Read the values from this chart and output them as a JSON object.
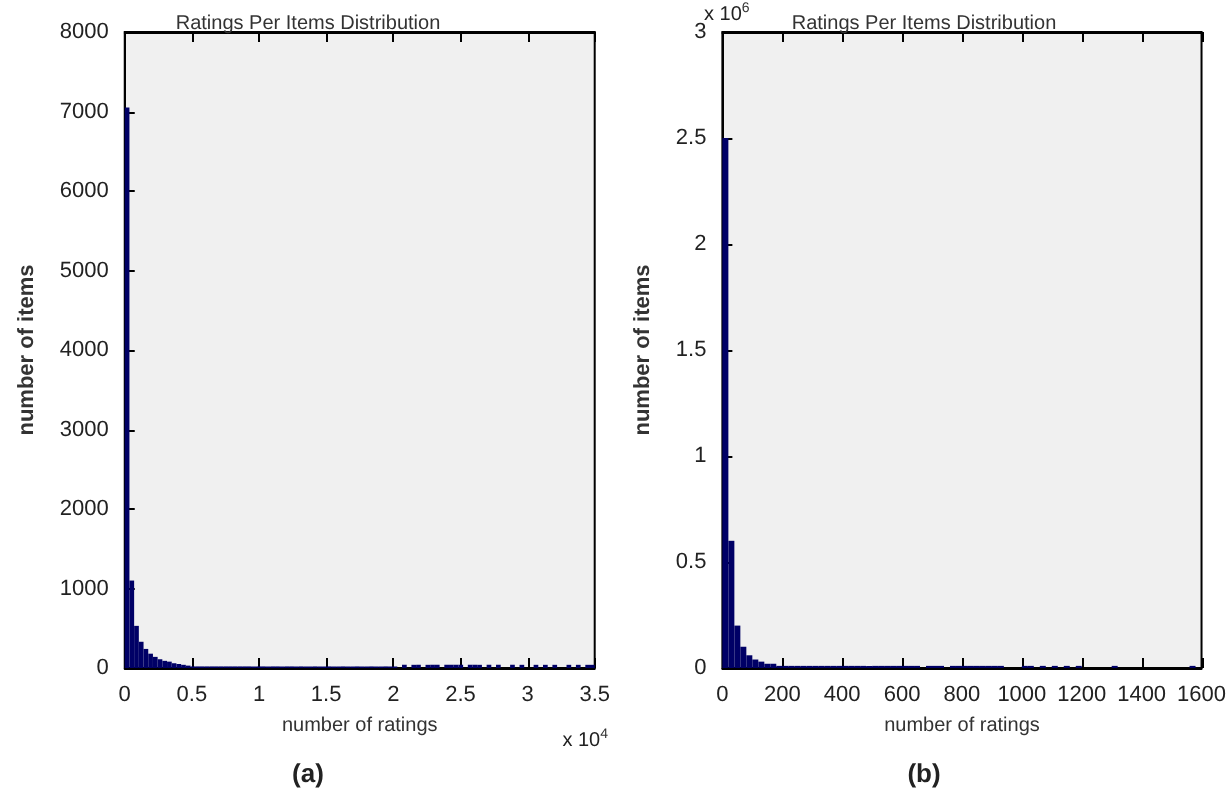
{
  "chart_data": [
    {
      "type": "histogram",
      "title": "Ratings Per Items Distribution",
      "xlabel": "number of ratings",
      "ylabel": "number of items",
      "color": "#000066",
      "grid": false,
      "bins": [
        0,
        0.035,
        0.07,
        0.105,
        0.14,
        0.175,
        0.21,
        0.245,
        0.28,
        0.315,
        0.35,
        0.385,
        0.42,
        0.455,
        0.49,
        0.525,
        0.56,
        0.595,
        0.63,
        0.665,
        0.7,
        0.735,
        0.77,
        0.805,
        0.84,
        0.875,
        0.91,
        0.945,
        0.98,
        1.015,
        1.05,
        1.085,
        1.12,
        1.155,
        1.19,
        1.225,
        1.26,
        1.295,
        1.33,
        1.365,
        1.4,
        1.435,
        1.47,
        1.505,
        1.54,
        1.575,
        1.61,
        1.645,
        1.68,
        1.715,
        1.75,
        1.785,
        1.82,
        1.855,
        1.89,
        1.925,
        1.96,
        1.995,
        2.03,
        2.065,
        2.1,
        2.135,
        2.17,
        2.205,
        2.24,
        2.275,
        2.31,
        2.345,
        2.38,
        2.415,
        2.45,
        2.485,
        2.52,
        2.555,
        2.59,
        2.625,
        2.66,
        2.695,
        2.73,
        2.765,
        2.8,
        2.835,
        2.87,
        2.905,
        2.94,
        2.975,
        3.01,
        3.045,
        3.08,
        3.115,
        3.15,
        3.185,
        3.22,
        3.255,
        3.29,
        3.325,
        3.36,
        3.395,
        3.43,
        3.465,
        3.5
      ],
      "values": [
        7050,
        1100,
        530,
        330,
        240,
        180,
        140,
        110,
        90,
        80,
        60,
        50,
        40,
        30,
        20,
        20,
        20,
        20,
        20,
        20,
        20,
        20,
        20,
        20,
        20,
        20,
        20,
        20,
        20,
        20,
        20,
        20,
        20,
        20,
        20,
        20,
        20,
        20,
        20,
        20,
        20,
        20,
        20,
        20,
        20,
        20,
        20,
        20,
        20,
        20,
        20,
        20,
        20,
        20,
        20,
        20,
        20,
        20,
        null,
        40,
        null,
        40,
        40,
        null,
        40,
        40,
        40,
        null,
        40,
        40,
        40,
        40,
        null,
        40,
        40,
        40,
        null,
        40,
        null,
        40,
        null,
        null,
        40,
        null,
        40,
        null,
        null,
        40,
        null,
        40,
        null,
        40,
        null,
        null,
        40,
        null,
        40,
        null,
        40,
        40
      ],
      "xlim": [
        0,
        3.5
      ],
      "xticks": [
        0,
        0.5,
        1,
        1.5,
        2,
        2.5,
        3,
        3.5
      ],
      "ylim": [
        0,
        8000
      ],
      "yticks": [
        0,
        1000,
        2000,
        3000,
        4000,
        5000,
        6000,
        7000,
        8000
      ],
      "annotations": [
        "x 10$^{4}$",
        "(a)"
      ]
    },
    {
      "type": "histogram",
      "title": "Ratings Per Items Distribution",
      "xlabel": "number of ratings",
      "ylabel": "number of items",
      "color": "#000066",
      "grid": false,
      "bins": [
        0,
        20,
        40,
        60,
        80,
        100,
        120,
        140,
        160,
        180,
        200,
        220,
        240,
        260,
        280,
        300,
        320,
        340,
        360,
        380,
        400,
        420,
        440,
        460,
        480,
        500,
        520,
        540,
        560,
        580,
        600,
        620,
        640,
        660,
        680,
        700,
        720,
        740,
        760,
        780,
        800,
        820,
        840,
        860,
        880,
        900,
        920,
        940,
        960,
        980,
        1000,
        1020,
        1040,
        1060,
        1080,
        1100,
        1120,
        1140,
        1160,
        1180,
        1200,
        1220,
        1240,
        1260,
        1280,
        1300,
        1320,
        1340,
        1360,
        1380,
        1400,
        1420,
        1440,
        1460,
        1480,
        1500,
        1520,
        1540,
        1560,
        1580,
        1600
      ],
      "values": [
        2.5,
        0.6,
        0.2,
        0.1,
        0.06,
        0.04,
        0.03,
        0.02,
        0.02,
        0.01,
        0.01,
        0.01,
        0.01,
        0.01,
        0.01,
        0.01,
        0.01,
        0.01,
        0.01,
        0.01,
        0.01,
        0.01,
        0.01,
        0.01,
        0.01,
        0.01,
        0.01,
        0.01,
        0.01,
        0.01,
        0.01,
        0.01,
        0.01,
        null,
        0.01,
        0.01,
        0.01,
        null,
        0.01,
        0.01,
        0.01,
        0.01,
        0.01,
        0.01,
        0.01,
        0.01,
        0.01,
        null,
        null,
        null,
        0.01,
        0.01,
        null,
        0.01,
        null,
        0.01,
        null,
        0.01,
        null,
        0.01,
        null,
        null,
        null,
        null,
        null,
        0.01,
        null,
        null,
        null,
        null,
        null,
        null,
        null,
        null,
        null,
        null,
        null,
        null,
        0.01,
        null
      ],
      "xlim": [
        0,
        1600
      ],
      "xticks": [
        0,
        200,
        400,
        600,
        800,
        1000,
        1200,
        1400,
        1600
      ],
      "ylim": [
        0,
        3
      ],
      "yticks": [
        0,
        0.5,
        1,
        1.5,
        2,
        2.5,
        3
      ],
      "annotations": [
        "x 10$^{6}$",
        "(b)"
      ]
    }
  ]
}
